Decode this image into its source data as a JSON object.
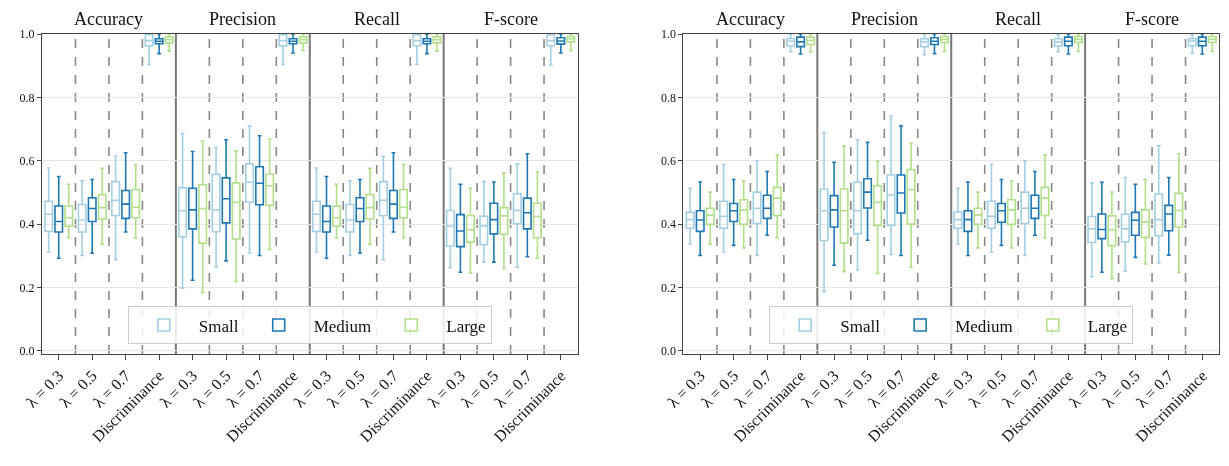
{
  "chart_data": [
    {
      "type": "box",
      "annotations": [
        "Accuracy",
        "Precision",
        "Recall",
        "F-score"
      ],
      "categories": [
        "λ = 0.3",
        "λ = 0.5",
        "λ = 0.7",
        "Discriminance",
        "λ = 0.3",
        "λ = 0.5",
        "λ = 0.7",
        "Discriminance",
        "λ = 0.3",
        "λ = 0.5",
        "λ = 0.7",
        "Discriminance",
        "λ = 0.3",
        "λ = 0.5",
        "λ = 0.7",
        "Discriminance"
      ],
      "ylim": [
        -0.01,
        1.0
      ],
      "yticks": [
        {
          "value": 0,
          "label": "0.0"
        },
        {
          "value": 0.2,
          "label": "0.2"
        },
        {
          "value": 0.4,
          "label": "0.4"
        },
        {
          "value": 0.6,
          "label": "0.6"
        },
        {
          "value": 0.8,
          "label": "0.8"
        },
        {
          "value": 1.0,
          "label": "1.0"
        }
      ],
      "grid": true,
      "legend": "bottom",
      "series": [
        {
          "name": "Small",
          "color": "#a6cee3",
          "boxes": [
            {
              "low": 0.312,
              "q1": 0.377,
              "median": 0.431,
              "q3": 0.472,
              "high": 0.577
            },
            {
              "low": 0.301,
              "q1": 0.375,
              "median": 0.413,
              "q3": 0.462,
              "high": 0.537
            },
            {
              "low": 0.288,
              "q1": 0.427,
              "median": 0.475,
              "q3": 0.534,
              "high": 0.614
            },
            {
              "low": 0.904,
              "q1": 0.963,
              "median": 0.979,
              "q3": 0.998,
              "high": 1.0
            },
            {
              "low": 0.198,
              "q1": 0.36,
              "median": 0.442,
              "q3": 0.515,
              "high": 0.686
            },
            {
              "low": 0.265,
              "q1": 0.376,
              "median": 0.445,
              "q3": 0.557,
              "high": 0.642
            },
            {
              "low": 0.309,
              "q1": 0.469,
              "median": 0.532,
              "q3": 0.59,
              "high": 0.71
            },
            {
              "low": 0.904,
              "q1": 0.963,
              "median": 0.979,
              "q3": 0.998,
              "high": 1.0
            },
            {
              "low": 0.312,
              "q1": 0.377,
              "median": 0.431,
              "q3": 0.472,
              "high": 0.577
            },
            {
              "low": 0.301,
              "q1": 0.375,
              "median": 0.413,
              "q3": 0.462,
              "high": 0.537
            },
            {
              "low": 0.288,
              "q1": 0.427,
              "median": 0.475,
              "q3": 0.534,
              "high": 0.614
            },
            {
              "low": 0.904,
              "q1": 0.963,
              "median": 0.979,
              "q3": 0.998,
              "high": 1.0
            },
            {
              "low": 0.262,
              "q1": 0.331,
              "median": 0.393,
              "q3": 0.443,
              "high": 0.576
            },
            {
              "low": 0.28,
              "q1": 0.335,
              "median": 0.394,
              "q3": 0.425,
              "high": 0.535
            },
            {
              "low": 0.264,
              "q1": 0.401,
              "median": 0.443,
              "q3": 0.496,
              "high": 0.59
            },
            {
              "low": 0.902,
              "q1": 0.963,
              "median": 0.979,
              "q3": 0.998,
              "high": 1.0
            }
          ]
        },
        {
          "name": "Medium",
          "color": "#1f78b4",
          "boxes": [
            {
              "low": 0.292,
              "q1": 0.375,
              "median": 0.408,
              "q3": 0.457,
              "high": 0.55
            },
            {
              "low": 0.308,
              "q1": 0.408,
              "median": 0.449,
              "q3": 0.483,
              "high": 0.541
            },
            {
              "low": 0.375,
              "q1": 0.418,
              "median": 0.463,
              "q3": 0.506,
              "high": 0.625
            },
            {
              "low": 0.938,
              "q1": 0.969,
              "median": 0.977,
              "q3": 0.985,
              "high": 1.0
            },
            {
              "low": 0.223,
              "q1": 0.385,
              "median": 0.445,
              "q3": 0.513,
              "high": 0.629
            },
            {
              "low": 0.284,
              "q1": 0.404,
              "median": 0.48,
              "q3": 0.546,
              "high": 0.666
            },
            {
              "low": 0.301,
              "q1": 0.461,
              "median": 0.529,
              "q3": 0.581,
              "high": 0.679
            },
            {
              "low": 0.94,
              "q1": 0.969,
              "median": 0.977,
              "q3": 0.985,
              "high": 1.0
            },
            {
              "low": 0.292,
              "q1": 0.375,
              "median": 0.408,
              "q3": 0.457,
              "high": 0.55
            },
            {
              "low": 0.308,
              "q1": 0.408,
              "median": 0.449,
              "q3": 0.483,
              "high": 0.541
            },
            {
              "low": 0.375,
              "q1": 0.418,
              "median": 0.463,
              "q3": 0.506,
              "high": 0.625
            },
            {
              "low": 0.938,
              "q1": 0.969,
              "median": 0.977,
              "q3": 0.985,
              "high": 1.0
            },
            {
              "low": 0.248,
              "q1": 0.329,
              "median": 0.378,
              "q3": 0.43,
              "high": 0.526
            },
            {
              "low": 0.28,
              "q1": 0.369,
              "median": 0.414,
              "q3": 0.466,
              "high": 0.533
            },
            {
              "low": 0.297,
              "q1": 0.385,
              "median": 0.436,
              "q3": 0.482,
              "high": 0.622
            },
            {
              "low": 0.94,
              "q1": 0.968,
              "median": 0.978,
              "q3": 0.988,
              "high": 1.0
            }
          ]
        },
        {
          "name": "Large",
          "color": "#b2df8a",
          "boxes": [
            {
              "low": 0.357,
              "q1": 0.393,
              "median": 0.42,
              "q3": 0.457,
              "high": 0.526
            },
            {
              "low": 0.336,
              "q1": 0.416,
              "median": 0.452,
              "q3": 0.493,
              "high": 0.576
            },
            {
              "low": 0.356,
              "q1": 0.42,
              "median": 0.453,
              "q3": 0.509,
              "high": 0.588
            },
            {
              "low": 0.946,
              "q1": 0.972,
              "median": 0.982,
              "q3": 0.991,
              "high": 1.0
            },
            {
              "low": 0.184,
              "q1": 0.34,
              "median": 0.449,
              "q3": 0.524,
              "high": 0.663
            },
            {
              "low": 0.219,
              "q1": 0.353,
              "median": 0.469,
              "q3": 0.53,
              "high": 0.631
            },
            {
              "low": 0.32,
              "q1": 0.459,
              "median": 0.521,
              "q3": 0.558,
              "high": 0.668
            },
            {
              "low": 0.948,
              "q1": 0.972,
              "median": 0.982,
              "q3": 0.991,
              "high": 1.0
            },
            {
              "low": 0.357,
              "q1": 0.393,
              "median": 0.42,
              "q3": 0.457,
              "high": 0.526
            },
            {
              "low": 0.336,
              "q1": 0.416,
              "median": 0.452,
              "q3": 0.493,
              "high": 0.576
            },
            {
              "low": 0.356,
              "q1": 0.42,
              "median": 0.453,
              "q3": 0.509,
              "high": 0.588
            },
            {
              "low": 0.946,
              "q1": 0.972,
              "median": 0.982,
              "q3": 0.991,
              "high": 1.0
            },
            {
              "low": 0.245,
              "q1": 0.343,
              "median": 0.382,
              "q3": 0.427,
              "high": 0.513
            },
            {
              "low": 0.26,
              "q1": 0.368,
              "median": 0.426,
              "q3": 0.452,
              "high": 0.561
            },
            {
              "low": 0.292,
              "q1": 0.357,
              "median": 0.424,
              "q3": 0.466,
              "high": 0.565
            },
            {
              "low": 0.947,
              "q1": 0.975,
              "median": 0.985,
              "q3": 0.992,
              "high": 1.0
            }
          ]
        }
      ]
    },
    {
      "type": "box",
      "annotations": [
        "Accuracy",
        "Precision",
        "Recall",
        "F-score"
      ],
      "categories": [
        "λ = 0.3",
        "λ = 0.5",
        "λ = 0.7",
        "Discriminance",
        "λ = 0.3",
        "λ = 0.5",
        "λ = 0.7",
        "Discriminance",
        "λ = 0.3",
        "λ = 0.5",
        "λ = 0.7",
        "Discriminance",
        "λ = 0.3",
        "λ = 0.5",
        "λ = 0.7",
        "Discriminance"
      ],
      "ylim": [
        -0.01,
        1.0
      ],
      "yticks": [
        {
          "value": 0,
          "label": "0.0"
        },
        {
          "value": 0.2,
          "label": "0.2"
        },
        {
          "value": 0.4,
          "label": "0.4"
        },
        {
          "value": 0.6,
          "label": "0.6"
        },
        {
          "value": 0.8,
          "label": "0.8"
        },
        {
          "value": 1.0,
          "label": "1.0"
        }
      ],
      "grid": true,
      "legend": "bottom",
      "series": [
        {
          "name": "Small",
          "color": "#a6cee3",
          "boxes": [
            {
              "low": 0.337,
              "q1": 0.387,
              "median": 0.414,
              "q3": 0.437,
              "high": 0.513
            },
            {
              "low": 0.312,
              "q1": 0.387,
              "median": 0.425,
              "q3": 0.472,
              "high": 0.588
            },
            {
              "low": 0.301,
              "q1": 0.402,
              "median": 0.45,
              "q3": 0.501,
              "high": 0.6
            },
            {
              "low": 0.944,
              "q1": 0.962,
              "median": 0.978,
              "q3": 0.986,
              "high": 0.998
            },
            {
              "low": 0.187,
              "q1": 0.348,
              "median": 0.442,
              "q3": 0.511,
              "high": 0.689
            },
            {
              "low": 0.255,
              "q1": 0.37,
              "median": 0.442,
              "q3": 0.532,
              "high": 0.666
            },
            {
              "low": 0.304,
              "q1": 0.396,
              "median": 0.492,
              "q3": 0.555,
              "high": 0.741
            },
            {
              "low": 0.935,
              "q1": 0.96,
              "median": 0.975,
              "q3": 0.985,
              "high": 1.0
            },
            {
              "low": 0.337,
              "q1": 0.387,
              "median": 0.414,
              "q3": 0.438,
              "high": 0.513
            },
            {
              "low": 0.312,
              "q1": 0.387,
              "median": 0.425,
              "q3": 0.472,
              "high": 0.588
            },
            {
              "low": 0.301,
              "q1": 0.402,
              "median": 0.45,
              "q3": 0.501,
              "high": 0.6
            },
            {
              "low": 0.944,
              "q1": 0.962,
              "median": 0.975,
              "q3": 0.985,
              "high": 0.998
            },
            {
              "low": 0.234,
              "q1": 0.342,
              "median": 0.385,
              "q3": 0.424,
              "high": 0.53
            },
            {
              "low": 0.251,
              "q1": 0.344,
              "median": 0.385,
              "q3": 0.431,
              "high": 0.547
            },
            {
              "low": 0.277,
              "q1": 0.363,
              "median": 0.414,
              "q3": 0.495,
              "high": 0.647
            },
            {
              "low": 0.94,
              "q1": 0.963,
              "median": 0.978,
              "q3": 0.985,
              "high": 0.998
            }
          ]
        },
        {
          "name": "Medium",
          "color": "#1f78b4",
          "boxes": [
            {
              "low": 0.301,
              "q1": 0.377,
              "median": 0.413,
              "q3": 0.442,
              "high": 0.533
            },
            {
              "low": 0.333,
              "q1": 0.408,
              "median": 0.442,
              "q3": 0.465,
              "high": 0.541
            },
            {
              "low": 0.365,
              "q1": 0.418,
              "median": 0.45,
              "q3": 0.491,
              "high": 0.566
            },
            {
              "low": 0.937,
              "q1": 0.96,
              "median": 0.975,
              "q3": 0.99,
              "high": 1.0
            },
            {
              "low": 0.27,
              "q1": 0.391,
              "median": 0.445,
              "q3": 0.49,
              "high": 0.595
            },
            {
              "low": 0.349,
              "q1": 0.451,
              "median": 0.501,
              "q3": 0.543,
              "high": 0.658
            },
            {
              "low": 0.301,
              "q1": 0.435,
              "median": 0.498,
              "q3": 0.555,
              "high": 0.71
            },
            {
              "low": 0.938,
              "q1": 0.967,
              "median": 0.977,
              "q3": 0.988,
              "high": 1.0
            },
            {
              "low": 0.301,
              "q1": 0.377,
              "median": 0.414,
              "q3": 0.442,
              "high": 0.533
            },
            {
              "low": 0.333,
              "q1": 0.406,
              "median": 0.442,
              "q3": 0.465,
              "high": 0.541
            },
            {
              "low": 0.365,
              "q1": 0.418,
              "median": 0.45,
              "q3": 0.491,
              "high": 0.566
            },
            {
              "low": 0.937,
              "q1": 0.963,
              "median": 0.977,
              "q3": 0.99,
              "high": 1.0
            },
            {
              "low": 0.248,
              "q1": 0.354,
              "median": 0.383,
              "q3": 0.432,
              "high": 0.532
            },
            {
              "low": 0.295,
              "q1": 0.365,
              "median": 0.412,
              "q3": 0.437,
              "high": 0.526
            },
            {
              "low": 0.302,
              "q1": 0.379,
              "median": 0.432,
              "q3": 0.459,
              "high": 0.547
            },
            {
              "low": 0.937,
              "q1": 0.963,
              "median": 0.977,
              "q3": 0.99,
              "high": 1.0
            }
          ]
        },
        {
          "name": "Large",
          "color": "#b2df8a",
          "boxes": [
            {
              "low": 0.336,
              "q1": 0.399,
              "median": 0.428,
              "q3": 0.45,
              "high": 0.501
            },
            {
              "low": 0.325,
              "q1": 0.399,
              "median": 0.445,
              "q3": 0.477,
              "high": 0.537
            },
            {
              "low": 0.356,
              "q1": 0.427,
              "median": 0.482,
              "q3": 0.516,
              "high": 0.619
            },
            {
              "low": 0.944,
              "q1": 0.967,
              "median": 0.98,
              "q3": 0.99,
              "high": 1.0
            },
            {
              "low": 0.25,
              "q1": 0.34,
              "median": 0.442,
              "q3": 0.511,
              "high": 0.647
            },
            {
              "low": 0.244,
              "q1": 0.396,
              "median": 0.469,
              "q3": 0.521,
              "high": 0.598
            },
            {
              "low": 0.264,
              "q1": 0.4,
              "median": 0.509,
              "q3": 0.572,
              "high": 0.655
            },
            {
              "low": 0.945,
              "q1": 0.973,
              "median": 0.983,
              "q3": 0.992,
              "high": 1.0
            },
            {
              "low": 0.325,
              "q1": 0.399,
              "median": 0.429,
              "q3": 0.45,
              "high": 0.501
            },
            {
              "low": 0.325,
              "q1": 0.399,
              "median": 0.445,
              "q3": 0.477,
              "high": 0.537
            },
            {
              "low": 0.356,
              "q1": 0.427,
              "median": 0.482,
              "q3": 0.516,
              "high": 0.619
            },
            {
              "low": 0.945,
              "q1": 0.973,
              "median": 0.983,
              "q3": 0.992,
              "high": 1.0
            },
            {
              "low": 0.228,
              "q1": 0.332,
              "median": 0.382,
              "q3": 0.426,
              "high": 0.501
            },
            {
              "low": 0.274,
              "q1": 0.358,
              "median": 0.407,
              "q3": 0.445,
              "high": 0.541
            },
            {
              "low": 0.247,
              "q1": 0.391,
              "median": 0.443,
              "q3": 0.497,
              "high": 0.622
            },
            {
              "low": 0.945,
              "q1": 0.973,
              "median": 0.983,
              "q3": 0.992,
              "high": 1.0
            }
          ]
        }
      ]
    }
  ]
}
